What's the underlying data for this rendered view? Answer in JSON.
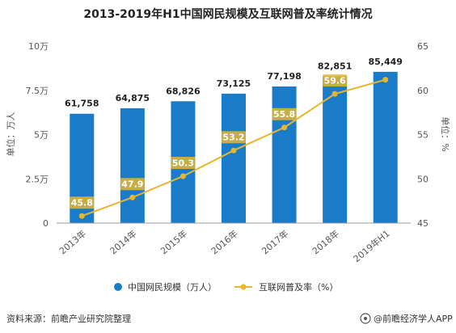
{
  "chart_data": {
    "type": "bar",
    "title": "2013-2019年H1中国网民规模及互联网普及率统计情况",
    "categories": [
      "2013年",
      "2014年",
      "2015年",
      "2016年",
      "2017年",
      "2018年",
      "2019年H1"
    ],
    "series": [
      {
        "name": "中国网民规模（万人）",
        "type": "bar",
        "axis": "left",
        "values": [
          61758,
          64875,
          68826,
          73125,
          77198,
          82851,
          85449
        ],
        "labels": [
          "61,758",
          "64,875",
          "68,826",
          "73,125",
          "77,198",
          "82,851",
          "85,449"
        ],
        "color": "#1a7cc8"
      },
      {
        "name": "互联网普及率（%）",
        "type": "line",
        "axis": "right",
        "values": [
          45.8,
          47.9,
          50.3,
          53.2,
          55.8,
          59.6,
          61.2
        ],
        "labels": [
          "45.8",
          "47.9",
          "50.3",
          "53.2",
          "55.8",
          "59.6",
          ""
        ],
        "color": "#e8b531"
      }
    ],
    "y_left": {
      "label": "单位：万人",
      "ylim": [
        0,
        100000
      ],
      "ticks": [
        0,
        25000,
        50000,
        75000,
        100000
      ],
      "tick_labels": [
        "0",
        "2.5万",
        "5万",
        "7.5万",
        "10万"
      ]
    },
    "y_right": {
      "label": "单位：%",
      "ylim": [
        45,
        65
      ],
      "ticks": [
        45,
        50,
        55,
        60,
        65
      ],
      "tick_labels": [
        "45",
        "50",
        "55",
        "60",
        "65"
      ]
    },
    "grid": false,
    "legend_position": "bottom"
  },
  "source": "资料来源：前瞻产业研究院整理",
  "brand": "@前瞻经济学人APP"
}
